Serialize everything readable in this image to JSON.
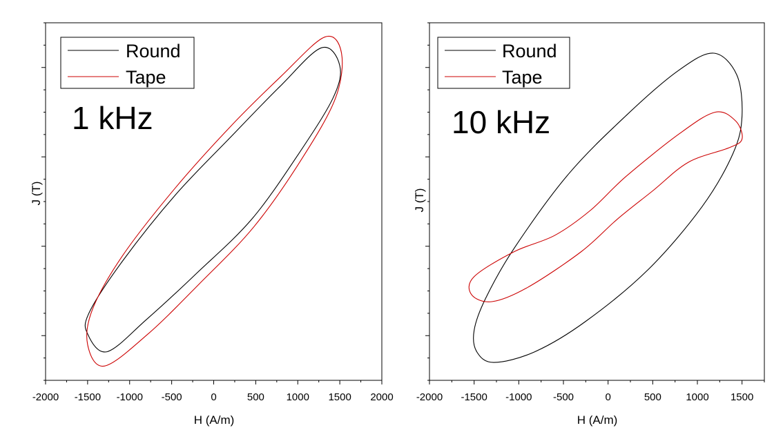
{
  "chart_data": [
    {
      "type": "line",
      "title": "",
      "annotation": "1 kHz",
      "xlabel": "H (A/m)",
      "ylabel": "J (T)",
      "xlim": [
        -2000,
        2000
      ],
      "ylim": [
        -1.0,
        1.0
      ],
      "x_ticks": [
        -2000,
        -1500,
        -1000,
        -500,
        0,
        500,
        1000,
        1500,
        2000
      ],
      "x_tick_labels": [
        "-2000",
        "-1500",
        "-1000",
        "-500",
        "0",
        "500",
        "1000",
        "1500",
        "2000"
      ],
      "y_tick_labels_shown": false,
      "legend_position": "top-left",
      "series": [
        {
          "name": "Round",
          "color": "#000000",
          "x": [
            1500,
            1280,
            780,
            200,
            -450,
            -1080,
            -1480,
            -1500,
            -1270,
            -800,
            -200,
            450,
            1000,
            1420,
            1500
          ],
          "y": [
            0.76,
            0.86,
            0.64,
            0.36,
            0.04,
            -0.33,
            -0.62,
            -0.74,
            -0.84,
            -0.66,
            -0.4,
            -0.1,
            0.26,
            0.58,
            0.76
          ]
        },
        {
          "name": "Tape",
          "color": "#cc0000",
          "x": [
            1520,
            1320,
            800,
            200,
            -450,
            -1080,
            -1440,
            -1500,
            -1300,
            -780,
            -170,
            480,
            1050,
            1450,
            1520
          ],
          "y": [
            0.83,
            0.92,
            0.7,
            0.42,
            0.08,
            -0.3,
            -0.6,
            -0.8,
            -0.92,
            -0.74,
            -0.46,
            -0.14,
            0.24,
            0.58,
            0.83
          ]
        }
      ]
    },
    {
      "type": "line",
      "title": "",
      "annotation": "10 kHz",
      "xlabel": "H (A/m)",
      "ylabel": "J (T)",
      "xlim": [
        -2000,
        1750
      ],
      "ylim": [
        -1.0,
        1.0
      ],
      "x_ticks": [
        -2000,
        -1500,
        -1000,
        -500,
        0,
        500,
        1000,
        1500
      ],
      "x_tick_labels": [
        "-2000",
        "-1500",
        "-1000",
        "-500",
        "0",
        "500",
        "1000",
        "1500"
      ],
      "y_tick_labels_shown": false,
      "legend_position": "top-left",
      "series": [
        {
          "name": "Round",
          "color": "#000000",
          "x": [
            1500,
            1440,
            1180,
            780,
            200,
            -450,
            -1050,
            -1370,
            -1500,
            -1470,
            -1280,
            -820,
            -250,
            450,
            1050,
            1400,
            1500
          ],
          "y": [
            0.48,
            0.71,
            0.83,
            0.73,
            0.48,
            0.15,
            -0.26,
            -0.54,
            -0.72,
            -0.84,
            -0.9,
            -0.84,
            -0.67,
            -0.38,
            -0.03,
            0.27,
            0.48
          ]
        },
        {
          "name": "Tape",
          "color": "#cc0000",
          "x": [
            1500,
            1430,
            1200,
            800,
            200,
            -200,
            -600,
            -1050,
            -1500,
            -1530,
            -1300,
            -900,
            -300,
            100,
            500,
            900,
            1350,
            1500
          ],
          "y": [
            0.35,
            0.45,
            0.5,
            0.38,
            0.14,
            -0.05,
            -0.19,
            -0.28,
            -0.42,
            -0.52,
            -0.56,
            -0.48,
            -0.28,
            -0.1,
            0.06,
            0.22,
            0.3,
            0.35
          ]
        }
      ]
    }
  ]
}
